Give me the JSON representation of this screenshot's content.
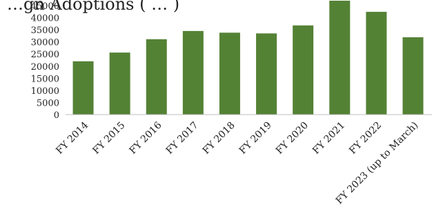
{
  "chart_data": {
    "type": "bar",
    "title": "Foreign Adoptions (…) — top line cropped",
    "title_visible_fragment": "…gn Adoptions ( … )",
    "categories": [
      "FY 2014",
      "FY 2015",
      "FY 2016",
      "FY 2017",
      "FY 2018",
      "FY 2019",
      "FY 2020",
      "FY 2021",
      "FY 2022",
      "FY 2023 (up to March)"
    ],
    "values": [
      22000,
      25600,
      31100,
      34500,
      33800,
      33500,
      36800,
      47000,
      42400,
      31900
    ],
    "yticks": [
      0,
      5000,
      10000,
      15000,
      20000,
      25000,
      30000,
      35000,
      40000,
      45000
    ],
    "ylim": [
      0,
      47000
    ],
    "bar_color": "#548235",
    "axis_color": "#bfbfbf",
    "grid": false,
    "legend": "none",
    "xlabel": "",
    "ylabel": ""
  }
}
